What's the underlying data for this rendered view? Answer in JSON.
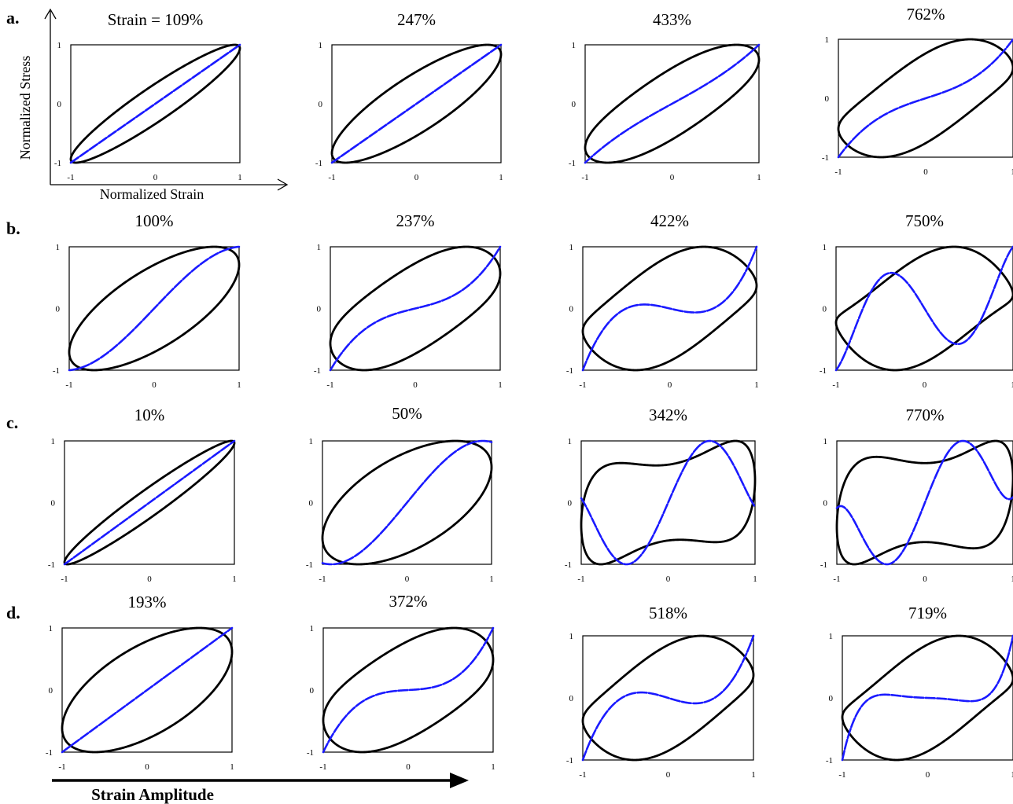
{
  "colors": {
    "loop": "#000000",
    "elastic": "#1a1aff"
  },
  "figure": {
    "row_labels": [
      "a.",
      "b.",
      "c.",
      "d."
    ],
    "strain_prefix": "Strain = ",
    "x_axis_title": "Normalized Strain",
    "y_axis_title": "Normalized Stress",
    "amplitude_label": "Strain Amplitude"
  },
  "chart_data": [
    {
      "row": "a.",
      "title": "109%",
      "type": "line",
      "xlim": [
        -1,
        1
      ],
      "ylim": [
        -1,
        1
      ],
      "x_ticks": [
        -1,
        0,
        1
      ],
      "y_ticks": [
        -1,
        0,
        1
      ],
      "xlabel": "Normalized Strain",
      "ylabel": "Normalized Stress",
      "loop": {
        "phase_deg": 20,
        "harmonics": []
      },
      "elastic": {
        "sigma_at_x0": 0.0,
        "h3": 0.0,
        "h5": 0.0
      }
    },
    {
      "row": "a.",
      "title": "247%",
      "type": "line",
      "xlim": [
        -1,
        1
      ],
      "ylim": [
        -1,
        1
      ],
      "x_ticks": [
        -1,
        0,
        1
      ],
      "y_ticks": [
        -1,
        0,
        1
      ],
      "loop": {
        "phase_deg": 33,
        "harmonics": []
      },
      "elastic": {
        "sigma_at_x0": 0.05,
        "h3": 0.0,
        "h5": 0.0
      }
    },
    {
      "row": "a.",
      "title": "433%",
      "type": "line",
      "xlim": [
        -1,
        1
      ],
      "ylim": [
        -1,
        1
      ],
      "x_ticks": [
        -1,
        0,
        1
      ],
      "y_ticks": [
        -1,
        0,
        1
      ],
      "loop": {
        "phase_deg": 38,
        "harmonics": [
          {
            "n": 3,
            "amp": 0.03,
            "phase_deg": 0
          }
        ]
      },
      "elastic": {
        "sigma_at_x0": 0.05,
        "h3": 0.05,
        "h5": 0.0
      }
    },
    {
      "row": "a.",
      "title": "762%",
      "type": "line",
      "xlim": [
        -1,
        1
      ],
      "ylim": [
        -1,
        1
      ],
      "x_ticks": [
        -1,
        0,
        1
      ],
      "y_ticks": [
        -1,
        0,
        1
      ],
      "loop": {
        "phase_deg": 50,
        "harmonics": [
          {
            "n": 3,
            "amp": 0.1,
            "phase_deg": 30
          }
        ]
      },
      "elastic": {
        "sigma_at_x0": 0.05,
        "h3": 0.15,
        "h5": 0.0
      }
    },
    {
      "row": "b.",
      "title": "100%",
      "type": "line",
      "xlim": [
        -1,
        1
      ],
      "ylim": [
        -1,
        1
      ],
      "x_ticks": [
        -1,
        0,
        1
      ],
      "y_ticks": [
        -1,
        0,
        1
      ],
      "loop": {
        "phase_deg": 45,
        "harmonics": []
      },
      "elastic": {
        "sigma_at_x0": 0.0,
        "h3": -0.1,
        "h5": 0.0
      }
    },
    {
      "row": "b.",
      "title": "237%",
      "type": "line",
      "xlim": [
        -1,
        1
      ],
      "ylim": [
        -1,
        1
      ],
      "x_ticks": [
        -1,
        0,
        1
      ],
      "y_ticks": [
        -1,
        0,
        1
      ],
      "loop": {
        "phase_deg": 50,
        "harmonics": [
          {
            "n": 3,
            "amp": 0.05,
            "phase_deg": 0
          }
        ]
      },
      "elastic": {
        "sigma_at_x0": 0.05,
        "h3": 0.2,
        "h5": 0.0
      }
    },
    {
      "row": "b.",
      "title": "422%",
      "type": "line",
      "xlim": [
        -1,
        1
      ],
      "ylim": [
        -1,
        1
      ],
      "x_ticks": [
        -1,
        0,
        1
      ],
      "y_ticks": [
        -1,
        0,
        1
      ],
      "loop": {
        "phase_deg": 60,
        "harmonics": [
          {
            "n": 3,
            "amp": 0.12,
            "phase_deg": 40
          }
        ]
      },
      "elastic": {
        "sigma_at_x0": 0.0,
        "h3": 0.5,
        "h5": 0.0
      }
    },
    {
      "row": "b.",
      "title": "750%",
      "type": "line",
      "xlim": [
        -1,
        1
      ],
      "ylim": [
        -1,
        1
      ],
      "x_ticks": [
        -1,
        0,
        1
      ],
      "y_ticks": [
        -1,
        0,
        1
      ],
      "loop": {
        "phase_deg": 66,
        "harmonics": [
          {
            "n": 3,
            "amp": 0.18,
            "phase_deg": 40
          }
        ]
      },
      "elastic": {
        "sigma_at_x0": 0.0,
        "h3": 1.25,
        "h5": -0.35
      }
    },
    {
      "row": "c.",
      "title": "10%",
      "type": "line",
      "xlim": [
        -1,
        1
      ],
      "ylim": [
        -1,
        1
      ],
      "x_ticks": [
        -1,
        0,
        1
      ],
      "y_ticks": [
        -1,
        0,
        1
      ],
      "loop": {
        "phase_deg": 15,
        "harmonics": []
      },
      "elastic": {
        "sigma_at_x0": 0.0,
        "h3": 0.0,
        "h5": 0.0
      }
    },
    {
      "row": "c.",
      "title": "50%",
      "type": "line",
      "xlim": [
        -1,
        1
      ],
      "ylim": [
        -1,
        1
      ],
      "x_ticks": [
        -1,
        0,
        1
      ],
      "y_ticks": [
        -1,
        0,
        1
      ],
      "loop": {
        "phase_deg": 55,
        "harmonics": []
      },
      "elastic": {
        "sigma_at_x0": 0.0,
        "h3": -0.15,
        "h5": 0.0
      }
    },
    {
      "row": "c.",
      "title": "342%",
      "type": "line",
      "xlim": [
        -1,
        1
      ],
      "ylim": [
        -1,
        1
      ],
      "x_ticks": [
        -1,
        0,
        1
      ],
      "y_ticks": [
        -1,
        0,
        1
      ],
      "loop": {
        "phase_deg": 70,
        "harmonics": [
          {
            "n": 3,
            "amp": 0.28,
            "phase_deg": -100
          }
        ]
      },
      "elastic": {
        "sigma_at_x0": 0.0,
        "h3": -1.45,
        "h5": 0.3
      }
    },
    {
      "row": "c.",
      "title": "770%",
      "type": "line",
      "xlim": [
        -1,
        1
      ],
      "ylim": [
        -1,
        1
      ],
      "x_ticks": [
        -1,
        0,
        1
      ],
      "y_ticks": [
        -1,
        0,
        1
      ],
      "loop": {
        "phase_deg": 72,
        "harmonics": [
          {
            "n": 3,
            "amp": 0.3,
            "phase_deg": -110
          }
        ]
      },
      "elastic": {
        "sigma_at_x0": 0.0,
        "h3": -1.4,
        "h5": 0.6
      }
    },
    {
      "row": "d.",
      "title": "193%",
      "type": "line",
      "xlim": [
        -1,
        1
      ],
      "ylim": [
        -1,
        1
      ],
      "x_ticks": [
        -1,
        0,
        1
      ],
      "y_ticks": [
        -1,
        0,
        1
      ],
      "loop": {
        "phase_deg": 52,
        "harmonics": []
      },
      "elastic": {
        "sigma_at_x0": 0.0,
        "h3": 0.0,
        "h5": 0.0
      }
    },
    {
      "row": "d.",
      "title": "372%",
      "type": "line",
      "xlim": [
        -1,
        1
      ],
      "ylim": [
        -1,
        1
      ],
      "x_ticks": [
        -1,
        0,
        1
      ],
      "y_ticks": [
        -1,
        0,
        1
      ],
      "loop": {
        "phase_deg": 56,
        "harmonics": [
          {
            "n": 3,
            "amp": 0.05,
            "phase_deg": 0
          }
        ]
      },
      "elastic": {
        "sigma_at_x0": 0.0,
        "h3": 0.3,
        "h5": 0.0
      }
    },
    {
      "row": "d.",
      "title": "518%",
      "type": "line",
      "xlim": [
        -1,
        1
      ],
      "ylim": [
        -1,
        1
      ],
      "x_ticks": [
        -1,
        0,
        1
      ],
      "y_ticks": [
        -1,
        0,
        1
      ],
      "loop": {
        "phase_deg": 60,
        "harmonics": [
          {
            "n": 3,
            "amp": 0.12,
            "phase_deg": 40
          }
        ]
      },
      "elastic": {
        "sigma_at_x0": 0.0,
        "h3": 0.55,
        "h5": 0.0
      }
    },
    {
      "row": "d.",
      "title": "719%",
      "type": "line",
      "xlim": [
        -1,
        1
      ],
      "ylim": [
        -1,
        1
      ],
      "x_ticks": [
        -1,
        0,
        1
      ],
      "y_ticks": [
        -1,
        0,
        1
      ],
      "loop": {
        "phase_deg": 62,
        "harmonics": [
          {
            "n": 3,
            "amp": 0.15,
            "phase_deg": 40
          }
        ]
      },
      "elastic": {
        "sigma_at_x0": 0.0,
        "h3": 0.7,
        "h5": 0.2
      }
    }
  ]
}
